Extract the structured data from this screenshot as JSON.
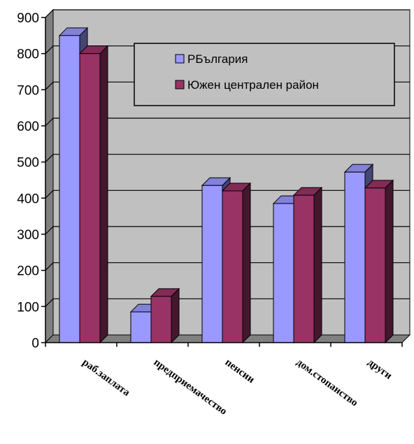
{
  "chart_data": {
    "type": "bar",
    "style": "3d-clustered-column",
    "categories": [
      "раб.заплата",
      "предприемачество",
      "пенсии",
      "дом.стопанство",
      "други"
    ],
    "series": [
      {
        "name": "РБългария",
        "values": [
          850,
          85,
          435,
          385,
          472
        ],
        "color": "#9999ff"
      },
      {
        "name": "Южен централен район",
        "values": [
          800,
          128,
          420,
          408,
          428
        ],
        "color": "#993366"
      }
    ],
    "yticks": [
      0,
      100,
      200,
      300,
      400,
      500,
      600,
      700,
      800,
      900
    ],
    "ylim": [
      0,
      900
    ],
    "grid": true,
    "legend_position": "top-right",
    "plot_background": "#c0c0c0"
  }
}
